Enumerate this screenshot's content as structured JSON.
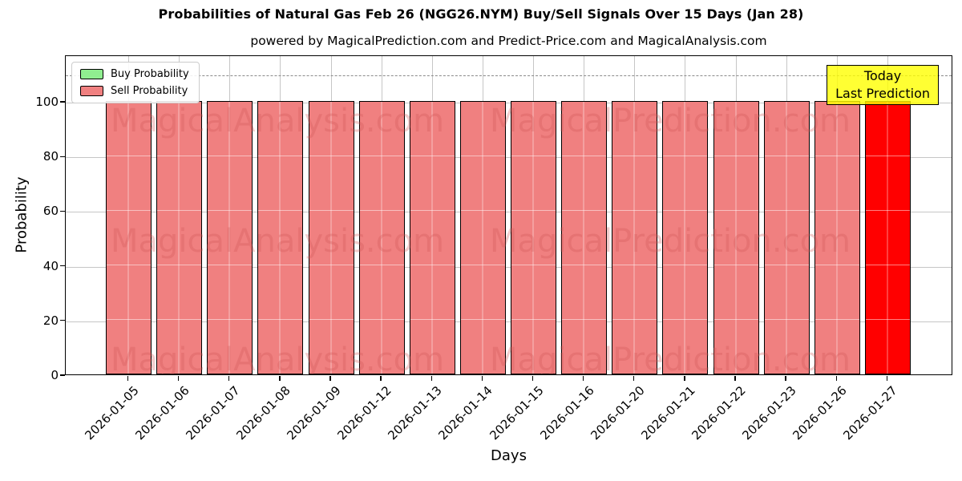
{
  "figure": {
    "title": "Probabilities of Natural Gas Feb 26 (NGG26.NYM) Buy/Sell Signals Over 15 Days (Jan 28)",
    "subtitle": "powered by MagicalPrediction.com and Predict-Price.com and MagicalAnalysis.com",
    "xlabel": "Days",
    "ylabel": "Probability"
  },
  "legend": {
    "items": [
      {
        "label": "Buy Probability",
        "color": "#90EE90"
      },
      {
        "label": "Sell Probability",
        "color": "#F08080"
      }
    ]
  },
  "annotation": {
    "line1": "Today",
    "line2": "Last Prediction",
    "bg_color": "rgba(255,255,0,0.8)"
  },
  "watermarks": {
    "left_text": "MagicalAnalysis.com",
    "right_text": "MagicalPrediction.com",
    "rows": 3,
    "color": "rgba(210,85,85,0.3)"
  },
  "chart_data": {
    "type": "bar",
    "title": "Probabilities of Natural Gas Feb 26 (NGG26.NYM) Buy/Sell Signals Over 15 Days (Jan 28)",
    "subtitle": "powered by MagicalPrediction.com and Predict-Price.com and MagicalAnalysis.com",
    "xlabel": "Days",
    "ylabel": "Probability",
    "categories": [
      "2026-01-05",
      "2026-01-06",
      "2026-01-07",
      "2026-01-08",
      "2026-01-09",
      "2026-01-12",
      "2026-01-13",
      "2026-01-14",
      "2026-01-15",
      "2026-01-16",
      "2026-01-20",
      "2026-01-21",
      "2026-01-22",
      "2026-01-23",
      "2026-01-26",
      "2026-01-27"
    ],
    "series": [
      {
        "name": "Buy Probability",
        "color": "#90EE90",
        "values": [
          0,
          0,
          0,
          0,
          0,
          0,
          0,
          0,
          0,
          0,
          0,
          0,
          0,
          0,
          0,
          0
        ]
      },
      {
        "name": "Sell Probability",
        "color": "#F08080",
        "values": [
          100,
          100,
          100,
          100,
          100,
          100,
          100,
          100,
          100,
          100,
          100,
          100,
          100,
          100,
          100,
          100
        ]
      }
    ],
    "last_bar": {
      "category": "2026-01-27",
      "color": "#FF0000"
    },
    "yticks": [
      0,
      20,
      40,
      60,
      80,
      100
    ],
    "ylim": [
      0,
      117
    ],
    "dashed_line_y": 110,
    "grid": true,
    "legend_position": "upper left",
    "bar_edge_color": "#000000"
  }
}
